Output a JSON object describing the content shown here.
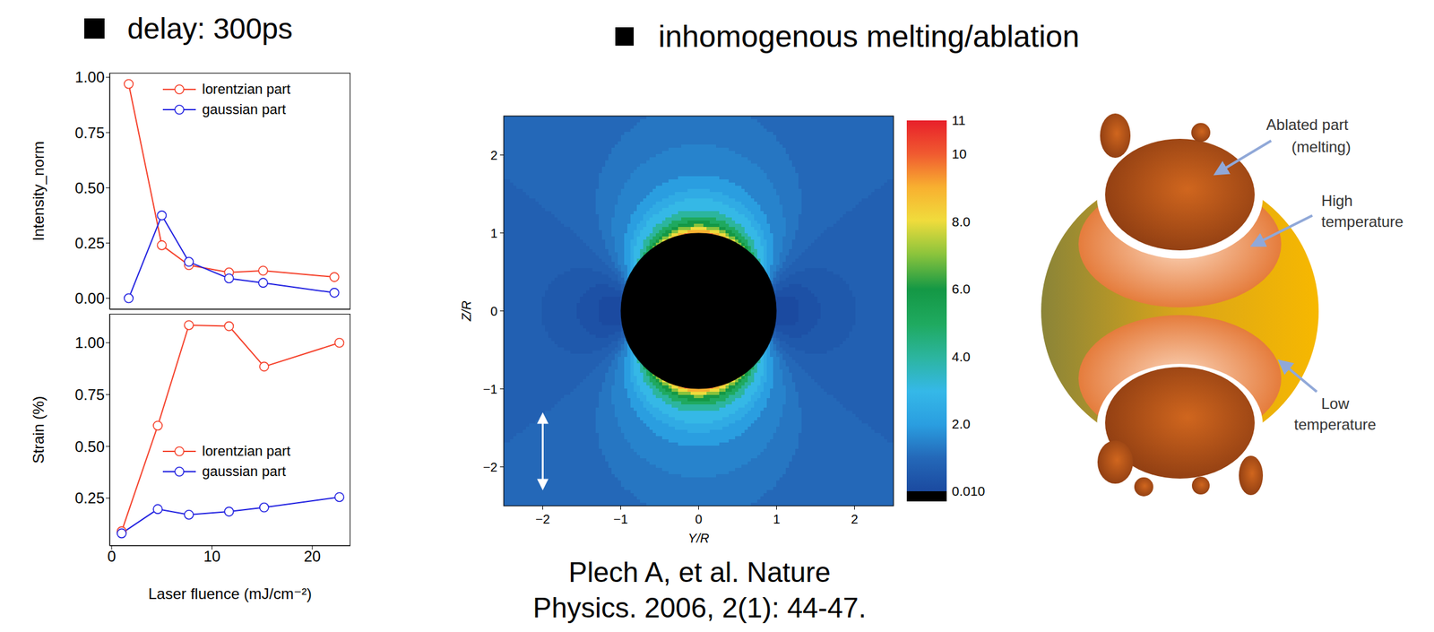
{
  "chart_data": [
    {
      "type": "line",
      "title": "delay: 300ps",
      "y_label": "Intensity_norm",
      "x": [
        1.7,
        5.0,
        7.7,
        11.7,
        15.1,
        22.2
      ],
      "series": [
        {
          "name": "lorentzian part",
          "color": "#f5402a",
          "values": [
            0.97,
            0.24,
            0.15,
            0.117,
            0.125,
            0.096
          ]
        },
        {
          "name": "gaussian part",
          "color": "#2020e0",
          "values": [
            0.0,
            0.375,
            0.165,
            0.09,
            0.07,
            0.025
          ]
        }
      ],
      "xlim": [
        -0.2,
        23.8
      ],
      "xticks": [
        0,
        10,
        20
      ],
      "ylim": [
        -0.05,
        1.02
      ],
      "yticks": [
        {
          "value": 0,
          "label": "0.00"
        },
        {
          "value": 0.25,
          "label": "0.25"
        },
        {
          "value": 0.5,
          "label": "0.50"
        },
        {
          "value": 0.75,
          "label": "0.75"
        },
        {
          "value": 1,
          "label": "1.00"
        }
      ],
      "legend": "upper right",
      "tick_labels": "y",
      "marker": "circle",
      "grid": false
    },
    {
      "type": "line",
      "x_label": "Laser fluence (mJ/cm⁻²)",
      "y_label": "Strain (%)",
      "x": [
        1.0,
        4.6,
        7.7,
        11.7,
        15.2,
        22.7
      ],
      "series": [
        {
          "name": "lorentzian part",
          "color": "#f5402a",
          "values": [
            0.09,
            0.6,
            1.085,
            1.08,
            0.885,
            1.0
          ]
        },
        {
          "name": "gaussian part",
          "color": "#2020e0",
          "values": [
            0.08,
            0.197,
            0.17,
            0.185,
            0.205,
            0.255
          ]
        }
      ],
      "xlim": [
        -0.2,
        23.8
      ],
      "xticks": [
        0,
        10,
        20
      ],
      "ylim": [
        0.02,
        1.14
      ],
      "yticks": [
        {
          "value": 0.25,
          "label": "0.25"
        },
        {
          "value": 0.5,
          "label": "0.50"
        },
        {
          "value": 0.75,
          "label": "0.75"
        },
        {
          "value": 1,
          "label": "1.00"
        }
      ],
      "legend": "right",
      "marker": "circle",
      "grid": false
    }
  ],
  "heading": "inhomogenous melting/ablation",
  "field_map": {
    "x_label": "Y/R",
    "y_label": "Z/R",
    "xlim": [
      -2.5,
      2.5
    ],
    "ylim": [
      -2.5,
      2.5
    ],
    "xticks": [
      {
        "value": -2,
        "label": "−2"
      },
      {
        "value": -1,
        "label": "−1"
      },
      0,
      1,
      2
    ],
    "yticks": [
      {
        "value": -2,
        "label": "−2"
      },
      {
        "value": -1,
        "label": "−1"
      },
      0,
      1,
      2
    ],
    "colorbar": {
      "range": [
        0.01,
        11
      ],
      "ticks": [
        {
          "value": 0.01,
          "label": "0.010"
        },
        {
          "value": 2,
          "label": "2.0"
        },
        {
          "value": 4,
          "label": "4.0"
        },
        {
          "value": 6,
          "label": "6.0"
        },
        {
          "value": 8,
          "label": "8.0"
        },
        10,
        11
      ]
    }
  },
  "citation": [
    "Plech A, et al.  Nature",
    "Physics. 2006, 2(1): 44-47."
  ],
  "diagram": {
    "labels": [
      {
        "lines": [
          "Ablated part",
          "(melting)"
        ]
      },
      {
        "lines": [
          "High",
          "temperature"
        ]
      },
      {
        "lines": [
          "Low",
          "temperature"
        ]
      }
    ]
  }
}
